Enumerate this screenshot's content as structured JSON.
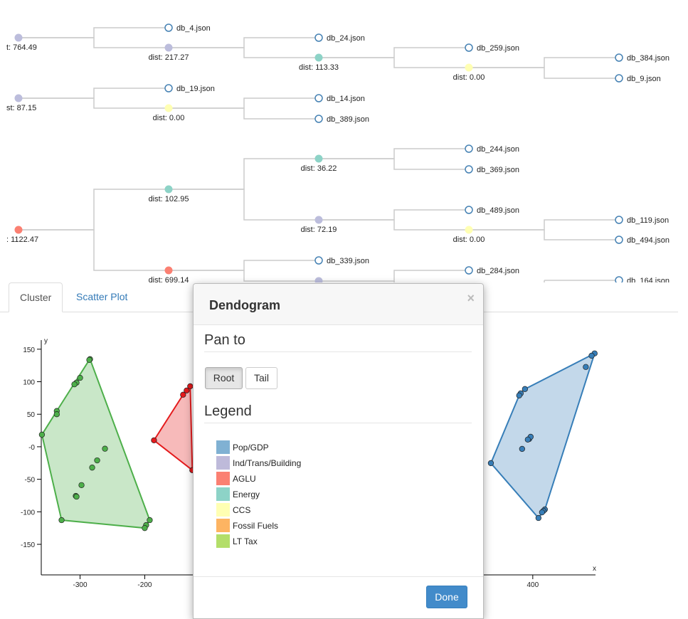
{
  "dendrogram": {
    "nodes": [
      {
        "label": "t: 764.49",
        "color": "#bcbddc"
      },
      {
        "label": "db_4.json"
      },
      {
        "label": "dist: 217.27",
        "color": "#bcbddc"
      },
      {
        "label": "db_24.json"
      },
      {
        "label": "dist: 113.33",
        "color": "#8dd3c7"
      },
      {
        "label": "db_259.json"
      },
      {
        "label": "dist: 0.00",
        "color": "#ffffb3"
      },
      {
        "label": "db_384.json"
      },
      {
        "label": "db_9.json"
      },
      {
        "label": "st: 87.15",
        "color": "#bcbddc"
      },
      {
        "label": "db_19.json"
      },
      {
        "label": "dist: 0.00",
        "color": "#ffffb3"
      },
      {
        "label": "db_14.json"
      },
      {
        "label": "db_389.json"
      },
      {
        "label": ": 1122.47",
        "color": "#fb8072"
      },
      {
        "label": "dist: 102.95",
        "color": "#8dd3c7"
      },
      {
        "label": "dist: 36.22",
        "color": "#8dd3c7"
      },
      {
        "label": "db_244.json"
      },
      {
        "label": "db_369.json"
      },
      {
        "label": "dist: 72.19",
        "color": "#bcbddc"
      },
      {
        "label": "db_489.json"
      },
      {
        "label": "dist: 0.00",
        "color": "#ffffb3"
      },
      {
        "label": "db_119.json"
      },
      {
        "label": "db_494.json"
      },
      {
        "label": "dist: 699.14",
        "color": "#fb8072"
      },
      {
        "label": "db_339.json"
      },
      {
        "label": null,
        "color": "#bcbddc"
      },
      {
        "label": "db_284.json"
      },
      {
        "label": "db_164.json"
      }
    ]
  },
  "tabs": [
    "Cluster",
    "Scatter Plot"
  ],
  "scatter": {
    "type": "scatter",
    "x_label": "x",
    "y_label": "y",
    "xlim": [
      -360,
      497
    ],
    "ylim": [
      -197,
      164
    ],
    "xticks": [
      -300,
      -200,
      400
    ],
    "yticks": [
      -150,
      -100,
      -50,
      {
        "value": 0,
        "label": "-0"
      },
      50,
      100,
      150
    ],
    "series": [
      {
        "color": "#4daf4a",
        "x": [
          -284.6,
          -285.7,
          -300,
          -305.5,
          -308.8,
          -336,
          -336,
          -359,
          -261.5,
          -273.6,
          -281.3,
          -297.8,
          -306.6,
          -305.5,
          -328.6,
          -192.3,
          -197.8,
          -200
        ],
        "y": [
          134.7,
          133.6,
          106,
          98.6,
          96,
          55,
          50,
          18.6,
          -3,
          -21,
          -32,
          -59,
          -75.6,
          -76.7,
          -112.8,
          -112.8,
          -120.5,
          -125
        ]
      },
      {
        "color": "#e41a1c",
        "x": [
          -185.7,
          -140.7,
          -135.2,
          -129.7,
          -126.4
        ],
        "y": [
          9.9,
          80,
          86.5,
          93,
          -36
        ]
      },
      {
        "color": "#377eb8",
        "x": [
          495.6,
          491,
          482,
          387.9,
          381.3,
          379,
          394.5,
          396.7,
          392.3,
          383.5,
          335.2,
          418.7,
          416.5,
          414.3,
          408.8
        ],
        "y": [
          143.5,
          140,
          122.7,
          88.7,
          82,
          78.9,
          12,
          15.3,
          11,
          -3.3,
          -25.2,
          -96.4,
          -98.6,
          -100.8,
          -109.5
        ]
      }
    ]
  },
  "modal": {
    "title": "Dendogram",
    "close": "×",
    "pan_heading": "Pan to",
    "buttons": [
      "Root",
      "Tail"
    ],
    "legend_heading": "Legend",
    "legend": [
      {
        "label": "Pop/GDP",
        "color": "#80b1d3"
      },
      {
        "label": "Ind/Trans/Building",
        "color": "#bebada"
      },
      {
        "label": "AGLU",
        "color": "#fb8072"
      },
      {
        "label": "Energy",
        "color": "#8dd3c7"
      },
      {
        "label": "CCS",
        "color": "#ffffb3"
      },
      {
        "label": "Fossil Fuels",
        "color": "#fdb462"
      },
      {
        "label": "LT Tax",
        "color": "#b3de69"
      }
    ],
    "done": "Done"
  }
}
